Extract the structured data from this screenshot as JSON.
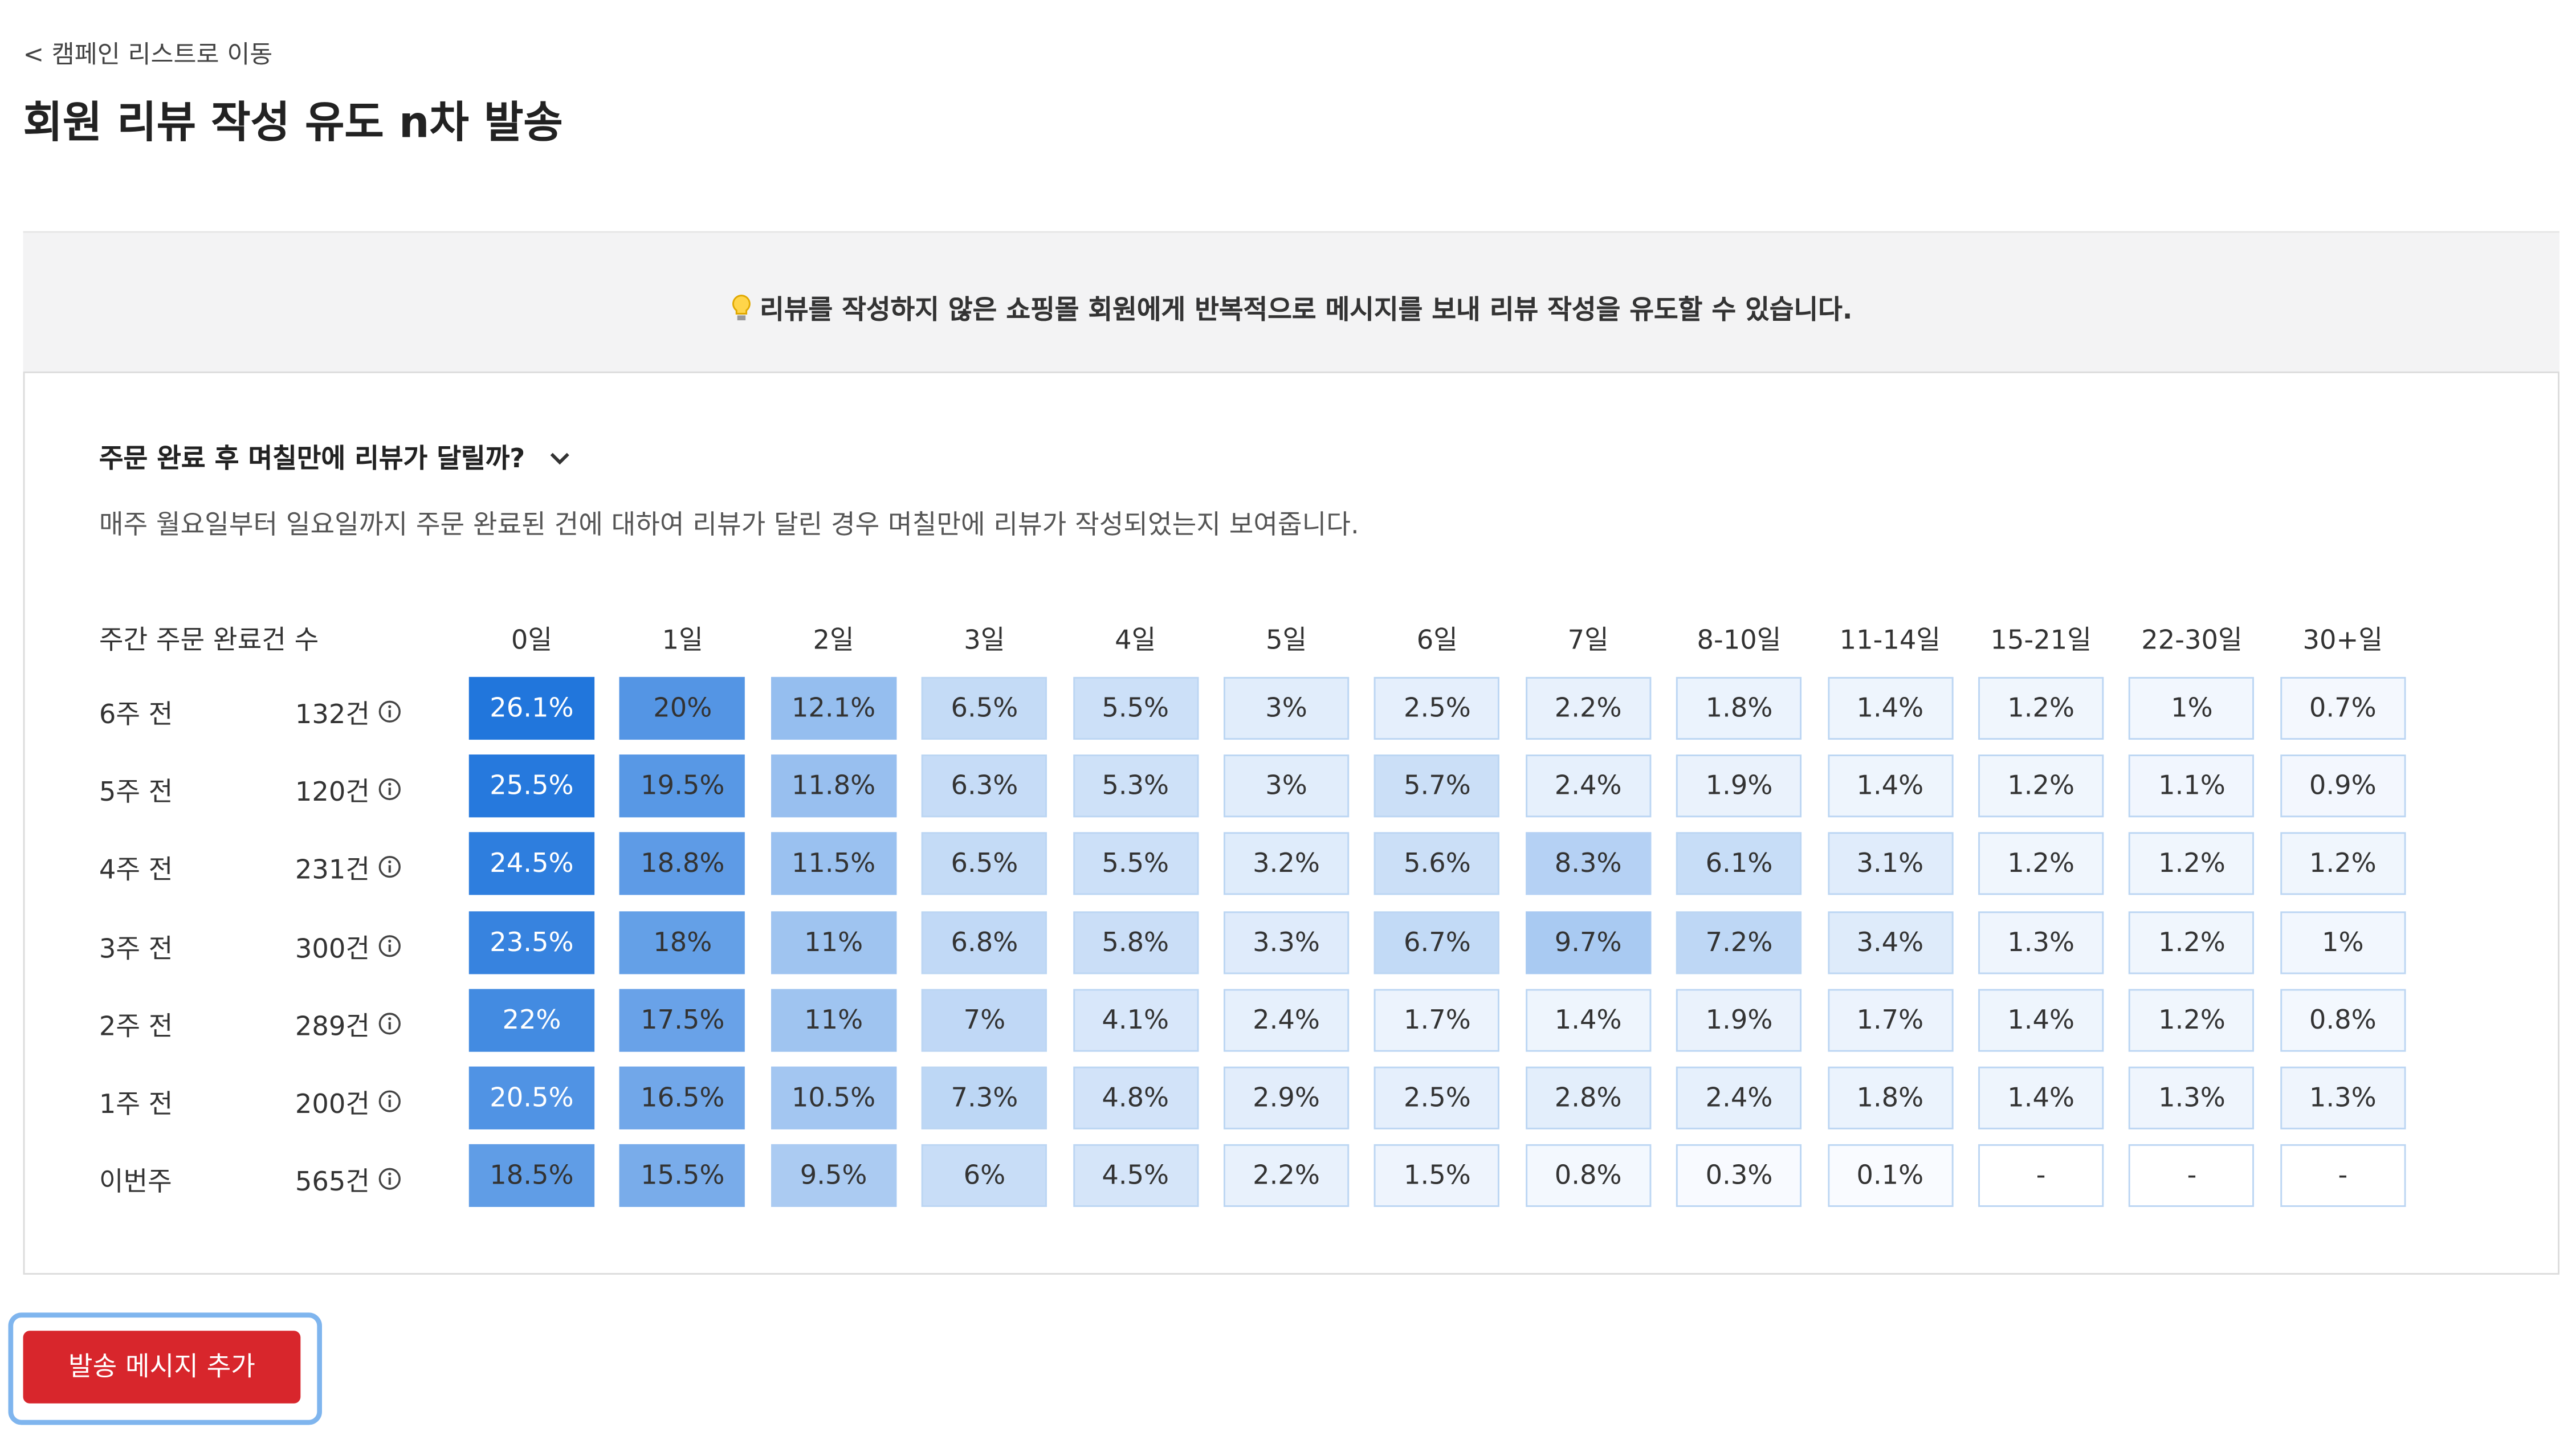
{
  "back_link": "< 캠페인 리스트로 이동",
  "title": "회원 리뷰 작성 유도 n차 발송",
  "notice": "리뷰를 작성하지 않은 쇼핑몰 회원에게 반복적으로 메시지를 보내 리뷰 작성을 유도할 수 있습니다.",
  "section": {
    "title": "주문 완료 후 며칠만에 리뷰가 달릴까?",
    "description": "매주 월요일부터 일요일까지 주문 완료된 건에 대하여 리뷰가 달린 경우 며칠만에 리뷰가 작성되었는지 보여줍니다."
  },
  "table": {
    "header": [
      "주간 주문 완료건 수",
      "0일",
      "1일",
      "2일",
      "3일",
      "4일",
      "5일",
      "6일",
      "7일",
      "8-10일",
      "11-14일",
      "15-21일",
      "22-30일",
      "30+일"
    ],
    "rows": [
      {
        "week": "6주 전",
        "count": "132건",
        "cells": [
          "26.1%",
          "20%",
          "12.1%",
          "6.5%",
          "5.5%",
          "3%",
          "2.5%",
          "2.2%",
          "1.8%",
          "1.4%",
          "1.2%",
          "1%",
          "0.7%"
        ]
      },
      {
        "week": "5주 전",
        "count": "120건",
        "cells": [
          "25.5%",
          "19.5%",
          "11.8%",
          "6.3%",
          "5.3%",
          "3%",
          "5.7%",
          "2.4%",
          "1.9%",
          "1.4%",
          "1.2%",
          "1.1%",
          "0.9%"
        ]
      },
      {
        "week": "4주 전",
        "count": "231건",
        "cells": [
          "24.5%",
          "18.8%",
          "11.5%",
          "6.5%",
          "5.5%",
          "3.2%",
          "5.6%",
          "8.3%",
          "6.1%",
          "3.1%",
          "1.2%",
          "1.2%",
          "1.2%"
        ]
      },
      {
        "week": "3주 전",
        "count": "300건",
        "cells": [
          "23.5%",
          "18%",
          "11%",
          "6.8%",
          "5.8%",
          "3.3%",
          "6.7%",
          "9.7%",
          "7.2%",
          "3.4%",
          "1.3%",
          "1.2%",
          "1%"
        ]
      },
      {
        "week": "2주 전",
        "count": "289건",
        "cells": [
          "22%",
          "17.5%",
          "11%",
          "7%",
          "4.1%",
          "2.4%",
          "1.7%",
          "1.4%",
          "1.9%",
          "1.7%",
          "1.4%",
          "1.2%",
          "0.8%"
        ]
      },
      {
        "week": "1주 전",
        "count": "200건",
        "cells": [
          "20.5%",
          "16.5%",
          "10.5%",
          "7.3%",
          "4.8%",
          "2.9%",
          "2.5%",
          "2.8%",
          "2.4%",
          "1.8%",
          "1.4%",
          "1.3%",
          "1.3%"
        ]
      },
      {
        "week": "이번주",
        "count": "565건",
        "cells": [
          "18.5%",
          "15.5%",
          "9.5%",
          "6%",
          "4.5%",
          "2.2%",
          "1.5%",
          "0.8%",
          "0.3%",
          "0.1%",
          "-",
          "-",
          "-"
        ]
      }
    ]
  },
  "button": "발송 메시지 추가"
}
